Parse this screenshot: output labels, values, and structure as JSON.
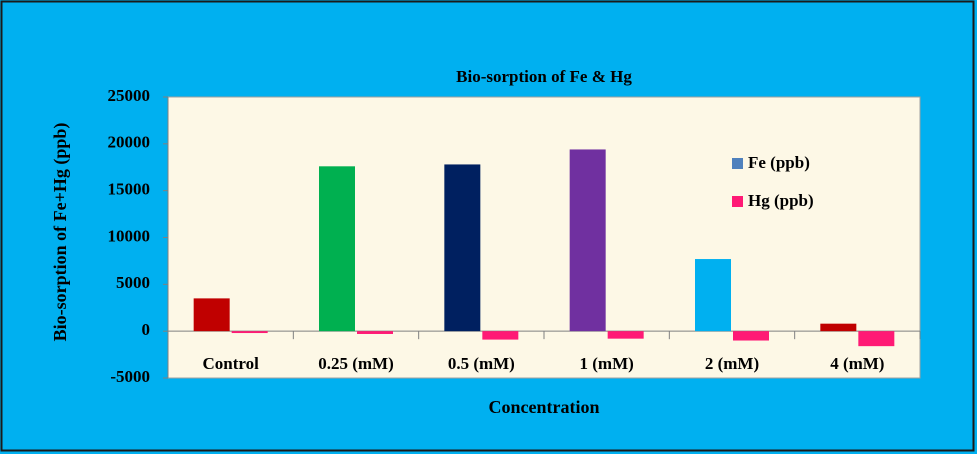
{
  "chart_data": {
    "type": "bar",
    "title": "Bio-sorption  of  Fe & Hg",
    "x_label": "Concentration",
    "y_label": "Bio-sorption of Fe+Hg (ppb)",
    "categories": [
      "Control",
      "0.25 (mM)",
      "0.5 (mM)",
      "1 (mM)",
      "2 (mM)",
      "4 (mM)"
    ],
    "series": [
      {
        "name": "Fe  (ppb)",
        "color": "#4f81bd",
        "colors": [
          "#c00000",
          "#00b050",
          "#002060",
          "#7030a0",
          "#00b0f0",
          "#c00000"
        ],
        "values": [
          3500,
          17600,
          17800,
          19400,
          7700,
          800
        ]
      },
      {
        "name": "Hg (ppb)",
        "color": "#ff1a75",
        "values": [
          -200,
          -300,
          -900,
          -800,
          -1000,
          -1600
        ]
      }
    ],
    "ylim": [
      -5000,
      25000
    ],
    "yticks": [
      -5000,
      0,
      5000,
      10000,
      15000,
      20000,
      25000
    ],
    "legend": "right"
  }
}
